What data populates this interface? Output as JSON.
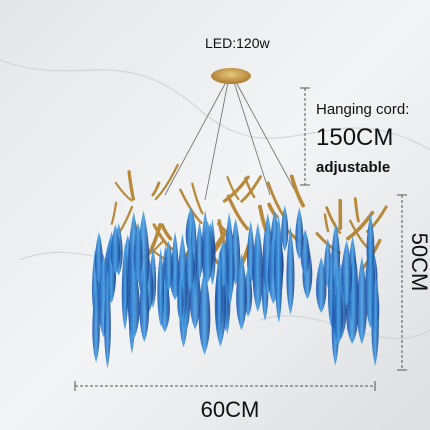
{
  "labels": {
    "power": "LED:120w",
    "cord_title": "Hanging cord:",
    "cord_length": "150CM",
    "cord_note": "adjustable",
    "height": "50CM",
    "width": "60CM"
  }
}
